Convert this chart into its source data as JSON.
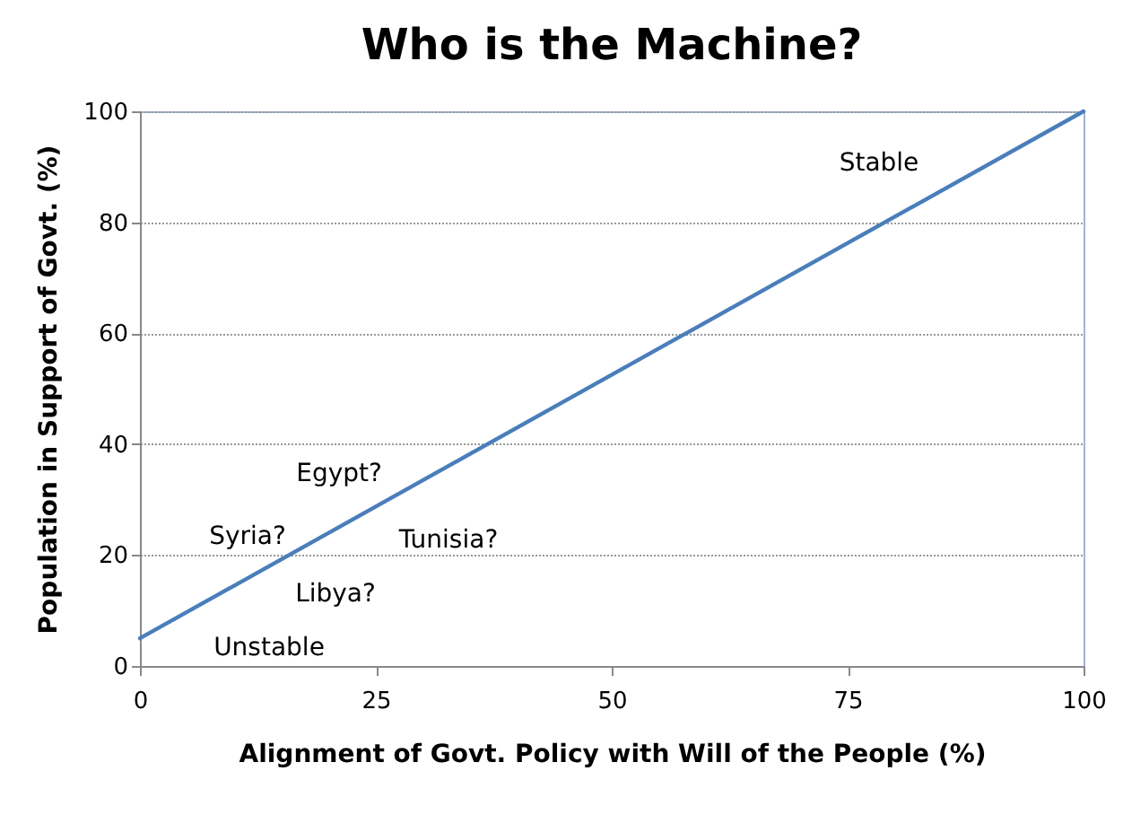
{
  "chart_data": {
    "type": "line",
    "title": "Who is the Machine?",
    "xlabel": "Alignment of Govt. Policy with Will of the People (%)",
    "ylabel": "Population in Support of Govt. (%)",
    "x": [
      0,
      100
    ],
    "series": [
      {
        "color": "#4a7ebb",
        "values": [
          5,
          100
        ]
      }
    ],
    "xlim": [
      0,
      100
    ],
    "xticks": [
      0,
      25,
      50,
      75,
      100
    ],
    "ylim": [
      0,
      100
    ],
    "yticks": [
      0,
      20,
      40,
      60,
      80,
      100
    ],
    "grid": "y",
    "marker": "none",
    "line_style": "solid",
    "annotations": [
      "Stable",
      "Egypt?",
      "Syria?",
      "Tunisia?",
      "Libya?",
      "Unstable"
    ]
  }
}
